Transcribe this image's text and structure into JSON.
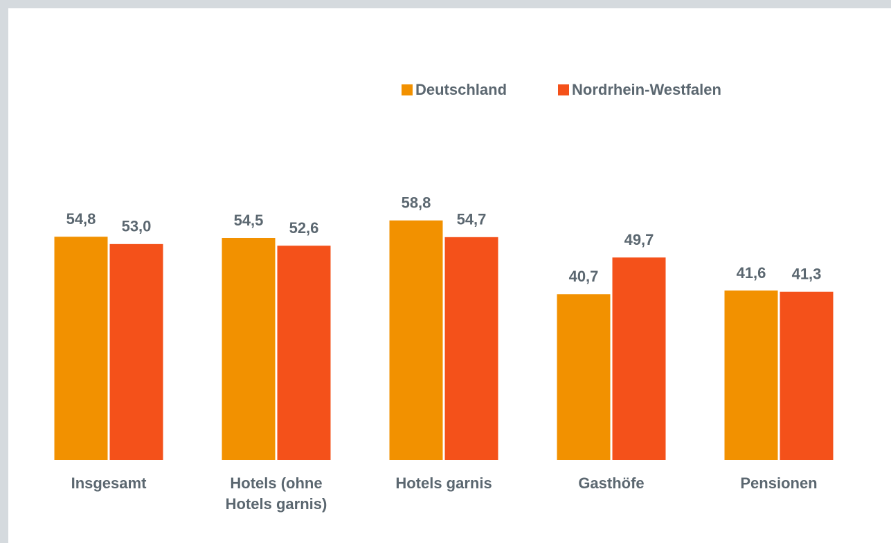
{
  "chart_data": {
    "type": "bar",
    "categories": [
      "Insgesamt",
      "Hotels (ohne Hotels garnis)",
      "Hotels garnis",
      "Gasthöfe",
      "Pensionen"
    ],
    "series": [
      {
        "name": "Deutschland",
        "color": "#f29100",
        "values": [
          54.8,
          54.5,
          58.8,
          40.7,
          41.6
        ],
        "value_labels": [
          "54,8",
          "54,5",
          "58,8",
          "40,7",
          "41,6"
        ]
      },
      {
        "name": "Nordrhein-Westfalen",
        "color": "#f4511a",
        "values": [
          53.0,
          52.6,
          54.7,
          49.7,
          41.3
        ],
        "value_labels": [
          "53,0",
          "52,6",
          "54,7",
          "49,7",
          "41,3"
        ]
      }
    ],
    "ylim": [
      0,
      100
    ],
    "legend": "top"
  }
}
